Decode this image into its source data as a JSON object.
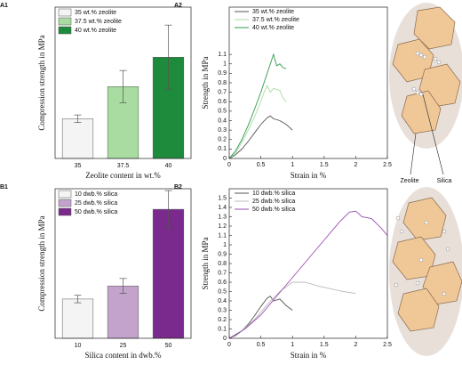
{
  "chart_data": [
    {
      "type": "bar",
      "panel": "A1",
      "xlabel": "Zeolite content in wt.%",
      "ylabel": "Compression strength in MPa",
      "categories": [
        "35",
        "37.5",
        "40"
      ],
      "values": [
        0.42,
        0.76,
        1.07
      ],
      "errors": [
        0.04,
        0.17,
        0.34
      ],
      "colors": [
        "#f4f4f4",
        "#a8dca0",
        "#1e8a3c"
      ],
      "legend_labels": [
        "35 wt.% zeolite",
        "37.5 wt.% zeolite",
        "40 wt.% zeolite"
      ],
      "ylim": [
        0,
        1.6
      ]
    },
    {
      "type": "line",
      "panel": "A2",
      "xlabel": "Strain in %",
      "ylabel": "Strength in MPa",
      "xlim": [
        0,
        2.5
      ],
      "xticks": [
        0,
        0.5,
        1,
        1.5,
        2,
        2.5
      ],
      "ylim": [
        0,
        1.6
      ],
      "yticks": [
        0,
        0.1,
        0.2,
        0.3,
        0.4,
        0.5,
        0.6,
        0.7,
        0.8,
        0.9,
        1,
        1.1
      ],
      "series": [
        {
          "name": "35 wt.% zeolite",
          "color": "#555555",
          "x": [
            0,
            0.1,
            0.2,
            0.3,
            0.4,
            0.5,
            0.6,
            0.65,
            0.7,
            0.8,
            0.9,
            0.95,
            1.0
          ],
          "values": [
            0,
            0.04,
            0.1,
            0.18,
            0.27,
            0.36,
            0.43,
            0.45,
            0.42,
            0.4,
            0.36,
            0.33,
            0.3
          ]
        },
        {
          "name": "37.5 wt.% zeolite",
          "color": "#a8dca0",
          "x": [
            0,
            0.1,
            0.2,
            0.3,
            0.4,
            0.5,
            0.55,
            0.6,
            0.65,
            0.7,
            0.8,
            0.85,
            0.9
          ],
          "values": [
            0,
            0.06,
            0.17,
            0.3,
            0.44,
            0.6,
            0.7,
            0.77,
            0.7,
            0.74,
            0.72,
            0.64,
            0.6
          ]
        },
        {
          "name": "40 wt.% zeolite",
          "color": "#2e9a4c",
          "x": [
            0,
            0.1,
            0.2,
            0.3,
            0.4,
            0.5,
            0.6,
            0.65,
            0.7,
            0.75,
            0.8,
            0.85,
            0.9
          ],
          "values": [
            0,
            0.08,
            0.2,
            0.35,
            0.52,
            0.7,
            0.9,
            1.0,
            1.1,
            0.98,
            1.0,
            0.96,
            0.95
          ]
        }
      ]
    },
    {
      "type": "bar",
      "panel": "B1",
      "xlabel": "Silica content in dwb.%",
      "ylabel": "Compression strength in MPa",
      "categories": [
        "10",
        "25",
        "50"
      ],
      "values": [
        0.42,
        0.56,
        1.38
      ],
      "errors": [
        0.04,
        0.08,
        0.2
      ],
      "colors": [
        "#f4f4f4",
        "#c3a3cc",
        "#7a2a8c"
      ],
      "legend_labels": [
        "10 dwb.% silica",
        "25 dwb.% silica",
        "50 dwb.% silica"
      ],
      "ylim": [
        0,
        1.6
      ]
    },
    {
      "type": "line",
      "panel": "B2",
      "xlabel": "Strain in %",
      "ylabel": "Strength in MPa",
      "xlim": [
        0,
        2.5
      ],
      "xticks": [
        0,
        0.5,
        1,
        1.5,
        2,
        2.5
      ],
      "ylim": [
        0,
        1.6
      ],
      "yticks": [
        0,
        0.1,
        0.2,
        0.3,
        0.4,
        0.5,
        0.6,
        0.7,
        0.8,
        0.9,
        1,
        1.1,
        1.2,
        1.3,
        1.4,
        1.5
      ],
      "series": [
        {
          "name": "10 dwb.% silica",
          "color": "#555555",
          "x": [
            0,
            0.1,
            0.2,
            0.3,
            0.4,
            0.5,
            0.6,
            0.65,
            0.7,
            0.8,
            0.9,
            1.0
          ],
          "values": [
            0,
            0.03,
            0.08,
            0.15,
            0.24,
            0.34,
            0.43,
            0.45,
            0.4,
            0.42,
            0.35,
            0.3
          ]
        },
        {
          "name": "25 dwb.% silica",
          "color": "#bbbbbb",
          "x": [
            0,
            0.2,
            0.4,
            0.6,
            0.8,
            1.0,
            1.2,
            1.4,
            1.6,
            1.8,
            2.0
          ],
          "values": [
            0,
            0.08,
            0.2,
            0.36,
            0.5,
            0.6,
            0.6,
            0.56,
            0.53,
            0.5,
            0.48
          ]
        },
        {
          "name": "50 dwb.% silica",
          "color": "#9b4db0",
          "x": [
            0,
            0.25,
            0.5,
            0.75,
            1.0,
            1.25,
            1.5,
            1.75,
            1.9,
            2.0,
            2.1,
            2.25,
            2.4,
            2.5
          ],
          "values": [
            0,
            0.1,
            0.25,
            0.45,
            0.65,
            0.85,
            1.05,
            1.25,
            1.35,
            1.36,
            1.3,
            1.28,
            1.18,
            1.1
          ]
        }
      ]
    }
  ],
  "illustration": {
    "labels": [
      "Zeolite",
      "Silica"
    ]
  }
}
